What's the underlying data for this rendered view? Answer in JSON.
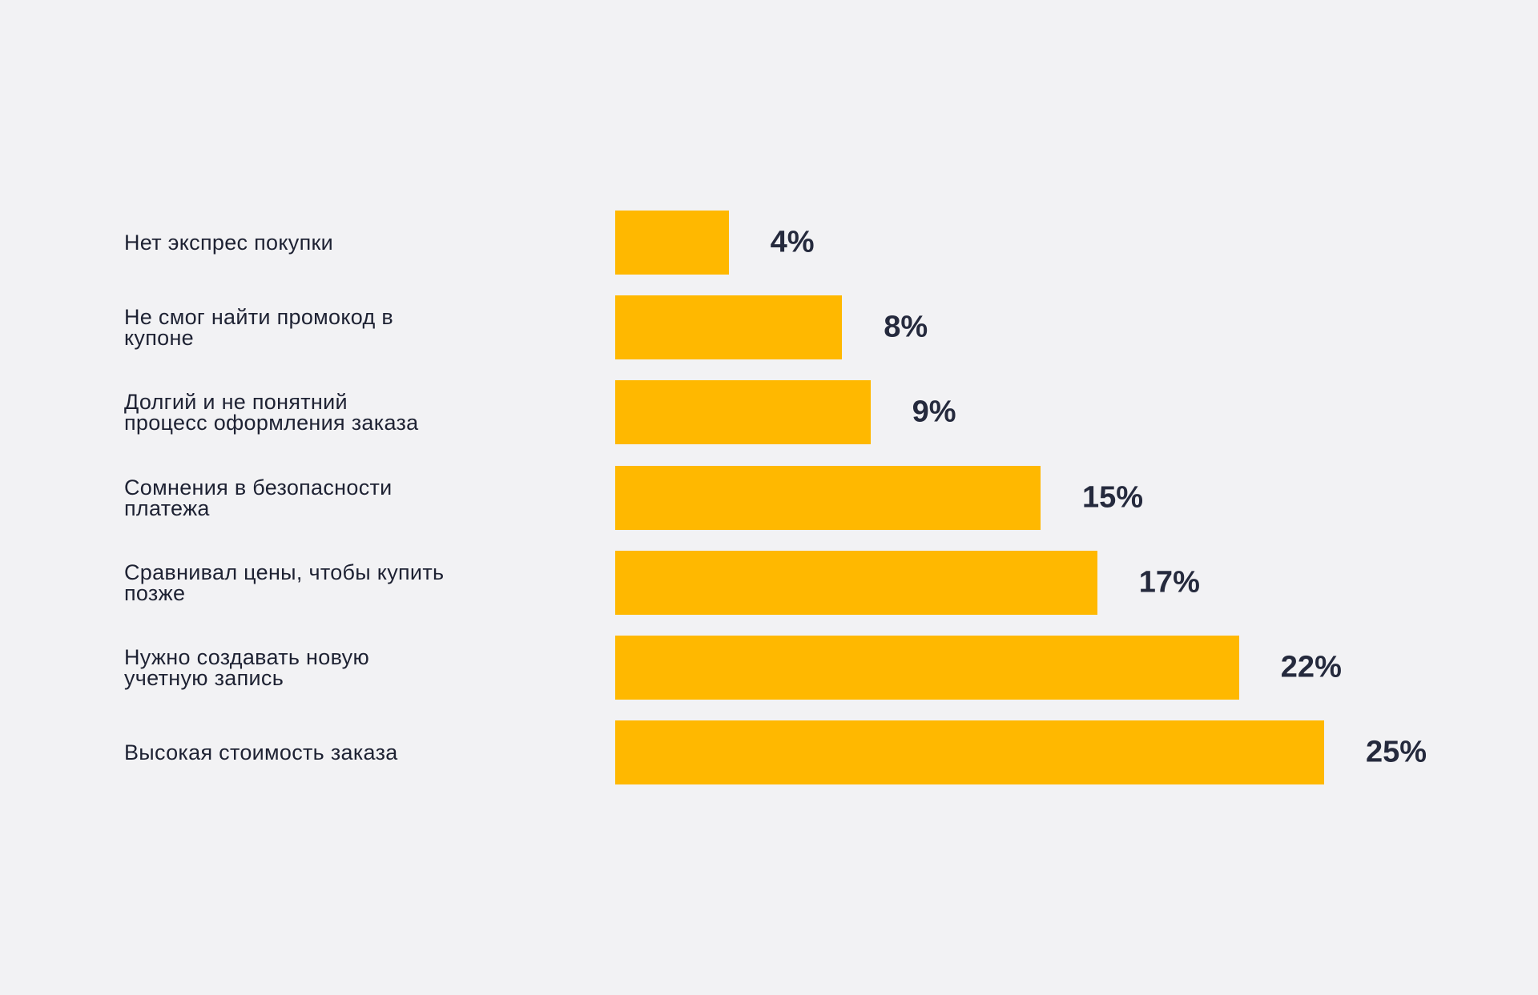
{
  "chart_data": {
    "type": "bar",
    "orientation": "horizontal",
    "title": "",
    "xlabel": "",
    "ylabel": "",
    "xlim": [
      0,
      25
    ],
    "grid": false,
    "bar_color": "#ffb800",
    "categories": [
      "Нет экспрес покупки",
      "Не смог найти промокод в\nкупоне",
      "Долгий и не понятний\nпроцесс оформления заказа",
      "Сомнения в безопасности\nплатежа",
      "Сравнивал цены, чтобы купить\nпозже",
      "Нужно создавать новую\nучетную запись",
      "Высокая стоимость заказа"
    ],
    "values": [
      4,
      8,
      9,
      15,
      17,
      22,
      25
    ],
    "value_labels": [
      "4%",
      "8%",
      "9%",
      "15%",
      "17%",
      "22%",
      "25%"
    ]
  }
}
